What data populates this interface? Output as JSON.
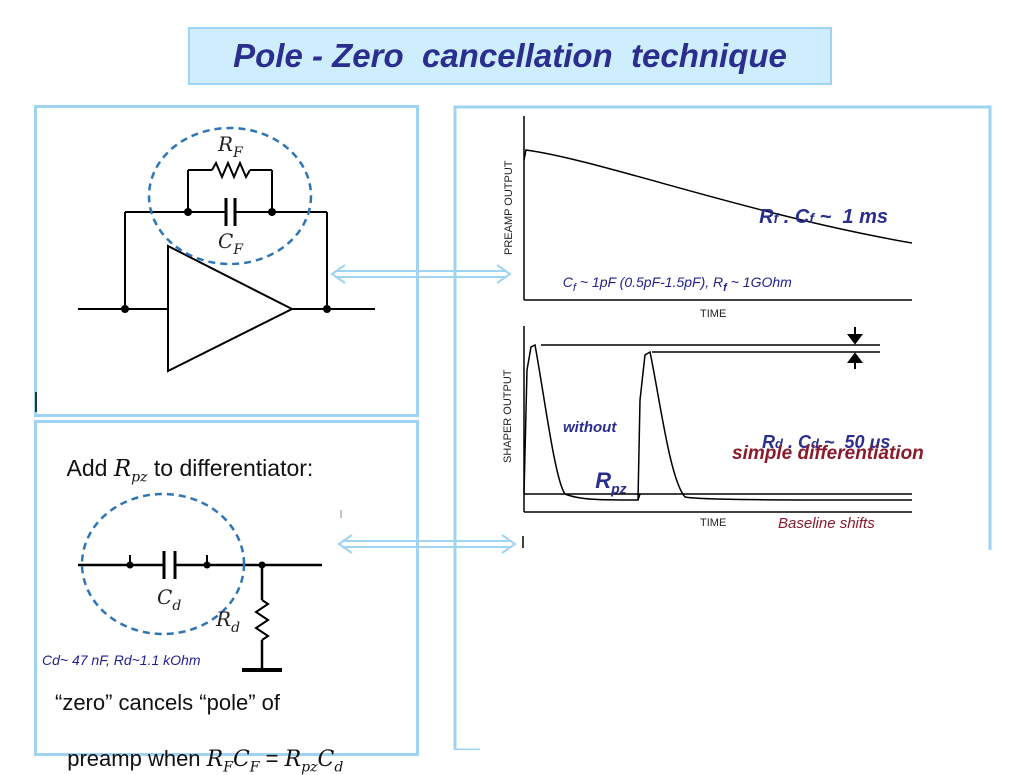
{
  "title": "Pole - Zero  cancellation  technique",
  "colors": {
    "title_bg": "#cfeefd",
    "panel_border": "#9fd3f2",
    "title_text": "#2a2e8f",
    "annotation_blue": "#1f1f8f",
    "annotation_red": "#8b1a2a",
    "dashed_circle": "#2e75b6"
  },
  "preamp_circuit": {
    "rf_label": "R",
    "rf_sub": "F",
    "cf_label": "C",
    "cf_sub": "F"
  },
  "differentiator": {
    "heading_pre": "Add ",
    "rpz_label": "R",
    "rpz_sub": "pz",
    "heading_post": " to differentiator:",
    "cd_label": "C",
    "cd_sub": "d",
    "rd_label": "R",
    "rd_sub": "d",
    "values_note": "Cd~ 47 nF, Rd~1.1 kOhm",
    "bottom_line1": "“zero” cancels “pole” of",
    "bottom_line2_pre": "preamp when ",
    "eq_rf": "R",
    "eq_rf_sub": "F",
    "eq_cf": "C",
    "eq_cf_sub": "F",
    "eq_sign": " = ",
    "eq_rpz": "R",
    "eq_rpz_sub": "pz",
    "eq_cd": "C",
    "eq_cd_sub": "d"
  },
  "preamp_plot": {
    "y_label": "PREAMP OUTPUT",
    "x_label": "TIME",
    "tau_label_r": "R",
    "tau_label_r_sub": "f",
    "tau_dot": " . ",
    "tau_label_c": "C",
    "tau_label_c_sub": "f",
    "tau_value": " ~  1 ms",
    "values_pre": "C",
    "values_sub1": "f",
    "values_mid": " ~ 1pF (0.5pF-1.5pF), R",
    "values_sub2": "f",
    "values_post": " ~ 1GOhm"
  },
  "shaper_plot": {
    "y_label": "SHAPER OUTPUT",
    "x_label": "TIME",
    "without_label": "without",
    "rpz_label": "R",
    "rpz_sub": "pz",
    "tau_r": "R",
    "tau_r_sub": "d",
    "tau_dot": " . ",
    "tau_c": "C",
    "tau_c_sub": "d",
    "tau_value": " ~  50 μs",
    "simple_diff": "simple differentiation",
    "baseline_shifts": "Baseline shifts"
  }
}
